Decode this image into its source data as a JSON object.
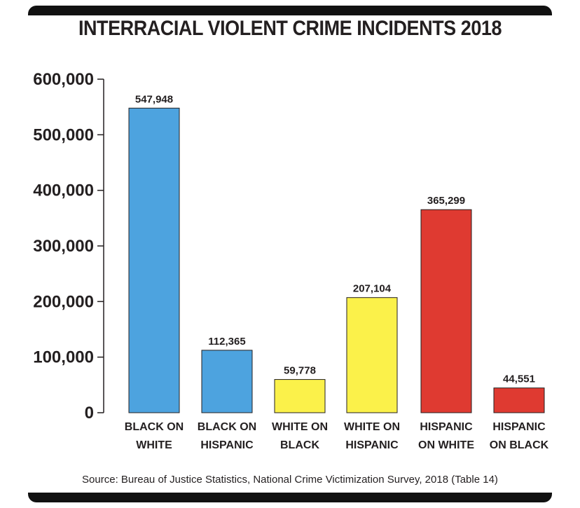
{
  "chart_data": {
    "type": "bar",
    "title": "INTERRACIAL VIOLENT CRIME INCIDENTS 2018",
    "categories": [
      [
        "BLACK ON",
        "WHITE"
      ],
      [
        "BLACK ON",
        "HISPANIC"
      ],
      [
        "WHITE ON",
        "BLACK"
      ],
      [
        "WHITE ON",
        "HISPANIC"
      ],
      [
        "HISPANIC",
        "ON WHITE"
      ],
      [
        "HISPANIC",
        "ON BLACK"
      ]
    ],
    "values": [
      547948,
      112365,
      59778,
      207104,
      365299,
      44551
    ],
    "value_labels": [
      "547,948",
      "112,365",
      "59,778",
      "207,104",
      "365,299",
      "44,551"
    ],
    "bar_colors": [
      "#4da3df",
      "#4da3df",
      "#fbf14a",
      "#fbf14a",
      "#df3a31",
      "#df3a31"
    ],
    "ylim": [
      0,
      600000
    ],
    "yticks": [
      0,
      100000,
      200000,
      300000,
      400000,
      500000,
      600000
    ],
    "ytick_labels": [
      "0",
      "100,000",
      "200,000",
      "300,000",
      "400,000",
      "500,000",
      "600,000"
    ],
    "grid": false,
    "source": "Source: Bureau of Justice Statistics, National Crime Victimization Survey, 2018 (Table 14)"
  }
}
